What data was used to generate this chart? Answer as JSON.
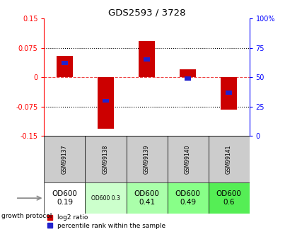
{
  "title": "GDS2593 / 3728",
  "samples": [
    "GSM99137",
    "GSM99138",
    "GSM99139",
    "GSM99140",
    "GSM99141"
  ],
  "log2_ratio": [
    0.055,
    -0.132,
    0.092,
    0.02,
    -0.082
  ],
  "percentile_rank": [
    62,
    30,
    65,
    49,
    37
  ],
  "ylim": [
    -0.15,
    0.15
  ],
  "yticks_left": [
    -0.15,
    -0.075,
    0,
    0.075,
    0.15
  ],
  "yticks_left_labels": [
    "-0.15",
    "-0.075",
    "0",
    "0.075",
    "0.15"
  ],
  "yticks_right": [
    0,
    25,
    50,
    75,
    100
  ],
  "yticks_right_labels": [
    "0",
    "25",
    "50",
    "75",
    "100%"
  ],
  "hlines": [
    0.075,
    -0.075
  ],
  "bar_color": "#cc0000",
  "percentile_color": "#2222cc",
  "zero_line_color": "#ee4444",
  "hline_color": "#000000",
  "growth_protocol_labels": [
    "OD600\n0.19",
    "OD600 0.3",
    "OD600\n0.41",
    "OD600\n0.49",
    "OD600\n0.6"
  ],
  "growth_protocol_bg": [
    "#ffffff",
    "#ccffcc",
    "#aaffaa",
    "#88ff88",
    "#55ee55"
  ],
  "growth_protocol_fontsize": [
    7.5,
    5.5,
    7.5,
    7.5,
    7.5
  ],
  "sample_bg": "#cccccc",
  "bar_width": 0.4,
  "percentile_bar_width": 0.15,
  "percentile_bar_height": 0.01
}
